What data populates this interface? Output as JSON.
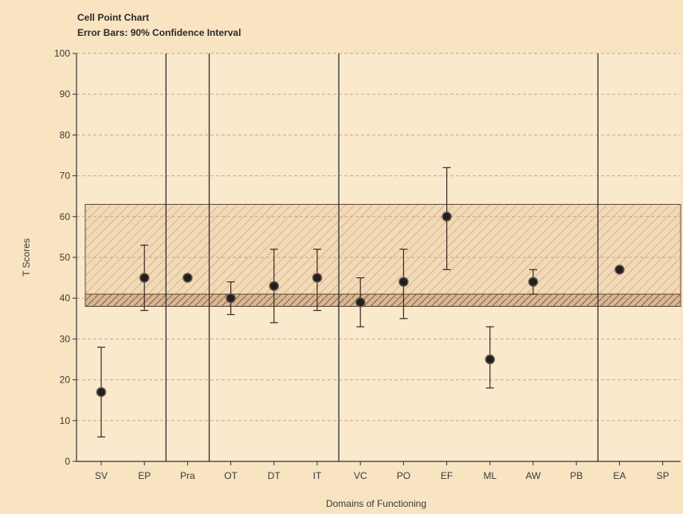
{
  "chart_data": {
    "type": "scatter",
    "title": "Cell Point Chart",
    "subtitle": "Error Bars: 90% Confidence Interval",
    "xlabel": "Domains of Functioning",
    "ylabel": "T Scores",
    "ylim": [
      0,
      100
    ],
    "yticks": [
      "0",
      "10",
      "20",
      "30",
      "40",
      "50",
      "60",
      "70",
      "80",
      "90",
      "100"
    ],
    "categories": [
      "SV",
      "EP",
      "Pra",
      "OT",
      "DT",
      "IT",
      "VC",
      "PO",
      "EF",
      "ML",
      "AW",
      "PB",
      "EA",
      "SP"
    ],
    "points": [
      {
        "x": "SV",
        "y": 17,
        "low": 6,
        "high": 28
      },
      {
        "x": "EP",
        "y": 45,
        "low": 37,
        "high": 53
      },
      {
        "x": "Pra",
        "y": 45,
        "low": null,
        "high": null
      },
      {
        "x": "OT",
        "y": 40,
        "low": 36,
        "high": 44
      },
      {
        "x": "DT",
        "y": 43,
        "low": 34,
        "high": 52
      },
      {
        "x": "IT",
        "y": 45,
        "low": 37,
        "high": 52
      },
      {
        "x": "VC",
        "y": 39,
        "low": 33,
        "high": 45
      },
      {
        "x": "PO",
        "y": 44,
        "low": 35,
        "high": 52
      },
      {
        "x": "EF",
        "y": 60,
        "low": 47,
        "high": 72
      },
      {
        "x": "ML",
        "y": 25,
        "low": 18,
        "high": 33
      },
      {
        "x": "AW",
        "y": 44,
        "low": 41,
        "high": 47
      },
      {
        "x": "EA",
        "y": 47,
        "low": null,
        "high": null
      }
    ],
    "group_dividers_after": [
      "EP",
      "Pra",
      "IT",
      "PB"
    ],
    "reference_bands": [
      {
        "y_low": 38,
        "y_high": 63,
        "style": "light-hatch"
      },
      {
        "y_low": 38,
        "y_high": 41,
        "style": "dark-hatch"
      }
    ],
    "grid": true,
    "colors": {
      "background": "#f9e4c2",
      "plot": "#fbe9cd",
      "axis": "#333333",
      "marker": "#1f1f1f",
      "hatch": "#b28e6a"
    }
  }
}
